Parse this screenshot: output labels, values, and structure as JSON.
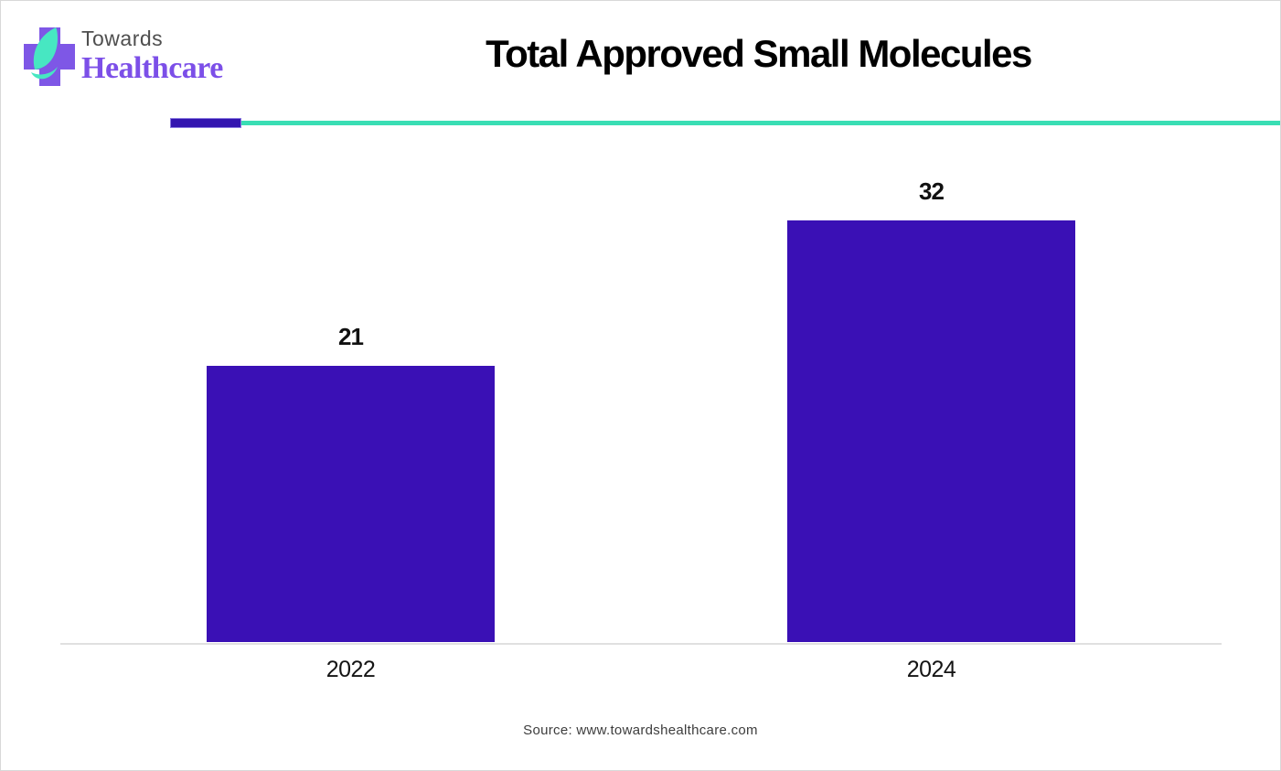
{
  "header": {
    "logo": {
      "line1": "Towards",
      "line2": "Healthcare",
      "icon": "cross-leaf-icon"
    },
    "title": "Total Approved Small Molecules"
  },
  "chart_data": {
    "type": "bar",
    "title": "Total Approved Small Molecules",
    "categories": [
      "2022",
      "2024"
    ],
    "values": [
      21,
      32
    ],
    "xlabel": "",
    "ylabel": "",
    "ylim": [
      0,
      35
    ],
    "grid": false,
    "legend": false,
    "bar_color": "#3a10b5",
    "value_label_color": "#111111"
  },
  "accents": {
    "divider_purple": "#3315b0",
    "divider_teal": "#39deb4",
    "logo_purple": "#7c4fe8",
    "logo_gray": "#4f4f4f",
    "logo_leaf_mint": "#47e7c2",
    "logo_cross_purple": "#7e57e6"
  },
  "footer": {
    "source": "Source: www.towardshealthcare.com"
  }
}
